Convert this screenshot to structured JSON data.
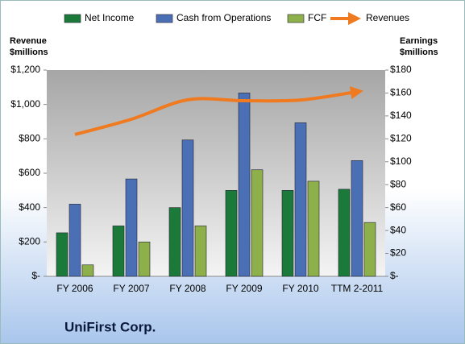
{
  "chart_data": {
    "type": "bar",
    "title": "UniFirst Corp.",
    "ylabel": [
      "Revenue",
      "$millions"
    ],
    "y2label": [
      "Earnings",
      "$millions"
    ],
    "categories": [
      "FY 2006",
      "FY 2007",
      "FY 2008",
      "FY 2009",
      "FY 2010",
      "TTM 2-2011"
    ],
    "ylim": [
      0,
      1200
    ],
    "yticks": [
      {
        "value": 0,
        "label": "$-"
      },
      {
        "value": 200,
        "label": "$200"
      },
      {
        "value": 400,
        "label": "$400"
      },
      {
        "value": 600,
        "label": "$600"
      },
      {
        "value": 800,
        "label": "$800"
      },
      {
        "value": 1000,
        "label": "$1,000"
      },
      {
        "value": 1200,
        "label": "$1,200"
      }
    ],
    "y2lim": [
      0,
      180
    ],
    "y2ticks": [
      {
        "value": 0,
        "label": "$-"
      },
      {
        "value": 20,
        "label": "$20"
      },
      {
        "value": 40,
        "label": "$40"
      },
      {
        "value": 60,
        "label": "$60"
      },
      {
        "value": 80,
        "label": "$80"
      },
      {
        "value": 100,
        "label": "$100"
      },
      {
        "value": 120,
        "label": "$120"
      },
      {
        "value": 140,
        "label": "$140"
      },
      {
        "value": 160,
        "label": "$160"
      },
      {
        "value": 180,
        "label": "$180"
      }
    ],
    "series": [
      {
        "name": "Net Income",
        "color": "#1b7a3a",
        "axis": "y2",
        "values": [
          38,
          44,
          60,
          75,
          75,
          76
        ]
      },
      {
        "name": "Cash from Operations",
        "color": "#4a6fb5",
        "axis": "y2",
        "values": [
          63,
          85,
          119,
          160,
          134,
          101
        ]
      },
      {
        "name": "FCF",
        "color": "#8db04a",
        "axis": "y2",
        "values": [
          10,
          30,
          44,
          93,
          83,
          47
        ]
      },
      {
        "name": "Revenues",
        "color": "#f07a20",
        "type": "line",
        "values": [
          825,
          914,
          1027,
          1022,
          1026,
          1074
        ]
      }
    ]
  }
}
